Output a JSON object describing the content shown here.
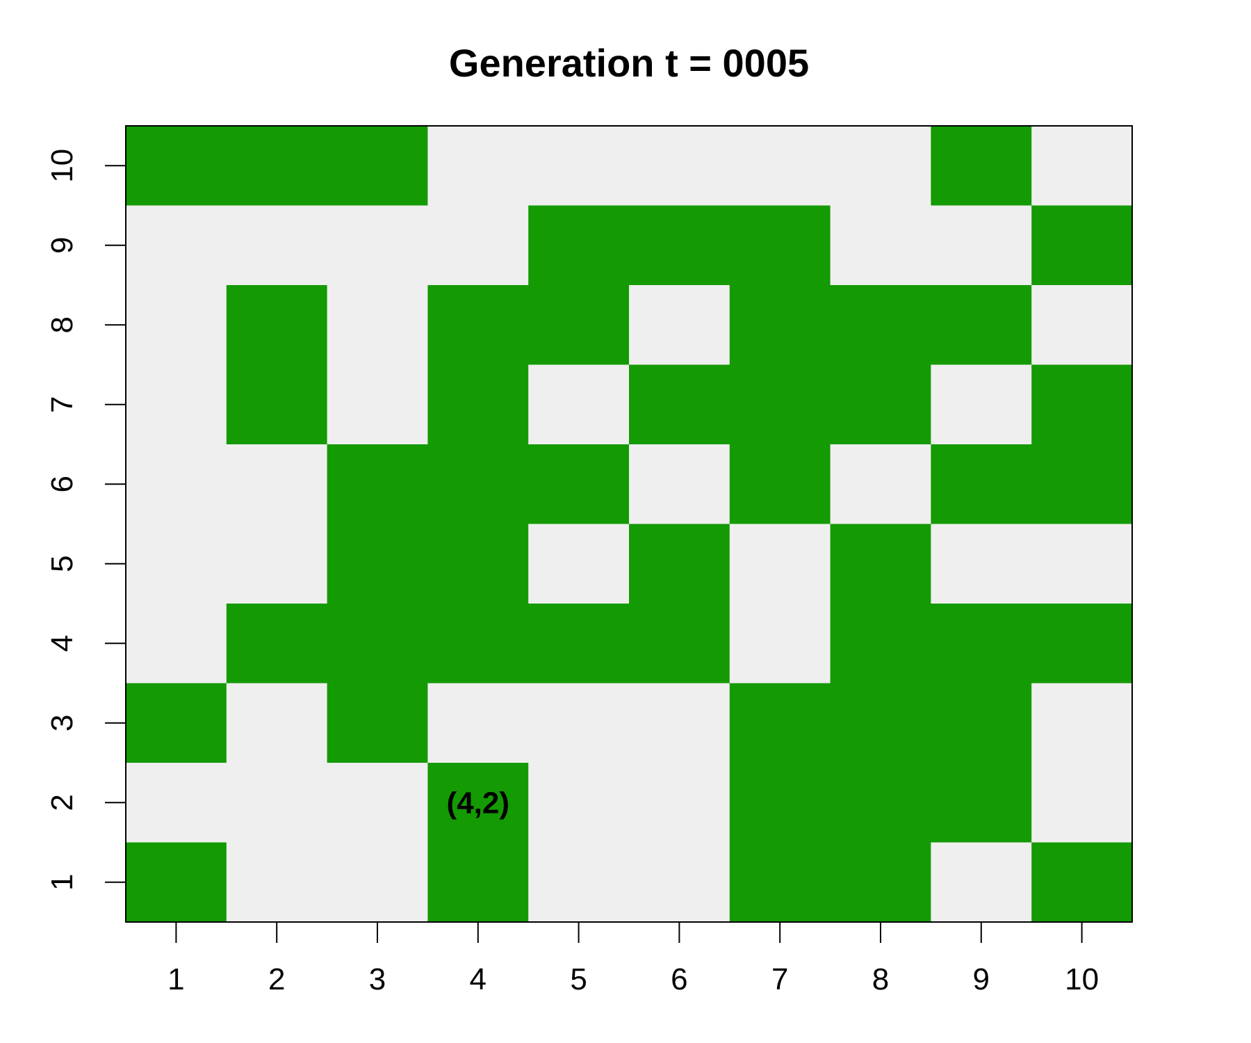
{
  "chart_data": {
    "type": "heatmap",
    "title": "Generation t = 0005",
    "xlabel": "",
    "ylabel": "",
    "x": [
      1,
      2,
      3,
      4,
      5,
      6,
      7,
      8,
      9,
      10
    ],
    "y": [
      1,
      2,
      3,
      4,
      5,
      6,
      7,
      8,
      9,
      10
    ],
    "xlim": [
      0.5,
      10.5
    ],
    "ylim": [
      0.5,
      10.5
    ],
    "x_tick_labels": [
      "1",
      "2",
      "3",
      "4",
      "5",
      "6",
      "7",
      "8",
      "9",
      "10"
    ],
    "y_tick_labels": [
      "1",
      "2",
      "3",
      "4",
      "5",
      "6",
      "7",
      "8",
      "9",
      "10"
    ],
    "rows_top_to_bottom": [
      [
        1,
        1,
        1,
        0,
        0,
        0,
        0,
        0,
        1,
        0
      ],
      [
        0,
        0,
        0,
        0,
        1,
        1,
        1,
        0,
        0,
        1
      ],
      [
        0,
        1,
        0,
        1,
        1,
        0,
        1,
        1,
        1,
        0
      ],
      [
        0,
        1,
        0,
        1,
        0,
        1,
        1,
        1,
        0,
        1
      ],
      [
        0,
        0,
        1,
        1,
        1,
        0,
        1,
        0,
        1,
        1
      ],
      [
        0,
        0,
        1,
        1,
        0,
        1,
        0,
        1,
        0,
        0
      ],
      [
        0,
        1,
        1,
        1,
        1,
        1,
        0,
        1,
        1,
        1
      ],
      [
        1,
        0,
        1,
        0,
        0,
        0,
        1,
        1,
        1,
        0
      ],
      [
        0,
        0,
        0,
        1,
        0,
        0,
        1,
        1,
        1,
        0
      ],
      [
        1,
        0,
        0,
        1,
        0,
        0,
        1,
        1,
        0,
        1
      ]
    ],
    "colors": {
      "alive": "#149a03",
      "dead": "#efefef",
      "border": "#000000"
    },
    "annotations": [
      {
        "x": 4,
        "y": 2,
        "text": "(4,2)"
      }
    ],
    "grid": false,
    "legend": "none"
  }
}
